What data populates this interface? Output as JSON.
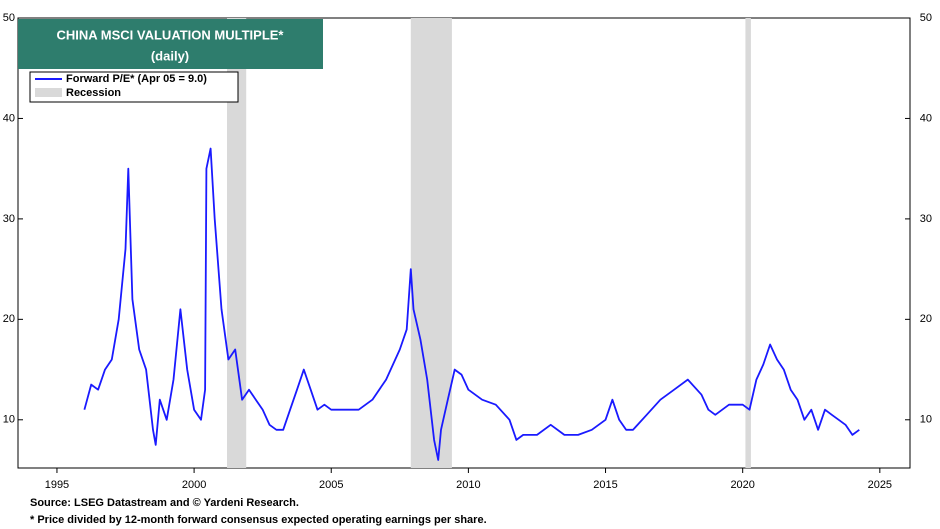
{
  "chart_data": {
    "type": "line",
    "title": "CHINA MSCI VALUATION MULTIPLE*",
    "subtitle": "(daily)",
    "source": "Source: LSEG Datastream and © Yardeni Research.",
    "note": "* Price divided by 12-month forward consensus expected operating earnings per share.",
    "recession_label": "Recession",
    "recession_color": "#d9d9d9",
    "recessions": [
      [
        2001.2,
        2001.9
      ],
      [
        2007.9,
        2009.4
      ],
      [
        2020.1,
        2020.3
      ]
    ],
    "x": [
      1996.0,
      1996.25,
      1996.5,
      1996.75,
      1997.0,
      1997.25,
      1997.5,
      1997.6,
      1997.75,
      1998.0,
      1998.25,
      1998.5,
      1998.6,
      1998.75,
      1999.0,
      1999.25,
      1999.5,
      1999.75,
      2000.0,
      2000.25,
      2000.4,
      2000.45,
      2000.6,
      2000.75,
      2001.0,
      2001.25,
      2001.5,
      2001.75,
      2002.0,
      2002.25,
      2002.5,
      2002.75,
      2003.0,
      2003.25,
      2003.5,
      2003.75,
      2004.0,
      2004.25,
      2004.5,
      2004.75,
      2005.0,
      2005.5,
      2006.0,
      2006.5,
      2007.0,
      2007.5,
      2007.75,
      2007.9,
      2008.0,
      2008.25,
      2008.5,
      2008.75,
      2008.9,
      2009.0,
      2009.25,
      2009.5,
      2009.75,
      2010.0,
      2010.5,
      2011.0,
      2011.5,
      2011.75,
      2012.0,
      2012.5,
      2013.0,
      2013.5,
      2014.0,
      2014.5,
      2015.0,
      2015.25,
      2015.5,
      2015.75,
      2016.0,
      2016.5,
      2017.0,
      2017.5,
      2018.0,
      2018.5,
      2018.75,
      2019.0,
      2019.5,
      2020.0,
      2020.25,
      2020.5,
      2020.75,
      2021.0,
      2021.25,
      2021.5,
      2021.75,
      2022.0,
      2022.25,
      2022.5,
      2022.75,
      2023.0,
      2023.25,
      2023.5,
      2023.75,
      2024.0,
      2024.25
    ],
    "series": [
      {
        "name": "Forward P/E* (Apr 05 = 9.0)",
        "color": "#1a1aff",
        "values": [
          11,
          13.5,
          13,
          15,
          16,
          20,
          27,
          35,
          22,
          17,
          15,
          9,
          7.5,
          12,
          10,
          14,
          21,
          15,
          11,
          10,
          13,
          35,
          37,
          30,
          21,
          16,
          17,
          12,
          13,
          12,
          11,
          9.5,
          9,
          9,
          11,
          13,
          15,
          13,
          11,
          11.5,
          11,
          11,
          11,
          12,
          14,
          17,
          19,
          25,
          21,
          18,
          14,
          8,
          6,
          9,
          12,
          15,
          14.5,
          13,
          12,
          11.5,
          10,
          8,
          8.5,
          8.5,
          9.5,
          8.5,
          8.5,
          9,
          10,
          12,
          10,
          9,
          9,
          10.5,
          12,
          13,
          14,
          12.5,
          11,
          10.5,
          11.5,
          11.5,
          11,
          14,
          15.5,
          17.5,
          16,
          15,
          13,
          12,
          10,
          11,
          9,
          11,
          10.5,
          10,
          9.5,
          8.5,
          9
        ]
      }
    ],
    "xlim": [
      1993.58,
      2026.1
    ],
    "ylim": [
      5.2,
      50
    ],
    "xticks": [
      1995,
      2000,
      2005,
      2010,
      2015,
      2020,
      2025
    ],
    "yticks": [
      10,
      20,
      30,
      40,
      50
    ],
    "y2lim": [
      5.2,
      50
    ],
    "y2ticks": [
      10,
      20,
      30,
      40,
      50
    ]
  }
}
